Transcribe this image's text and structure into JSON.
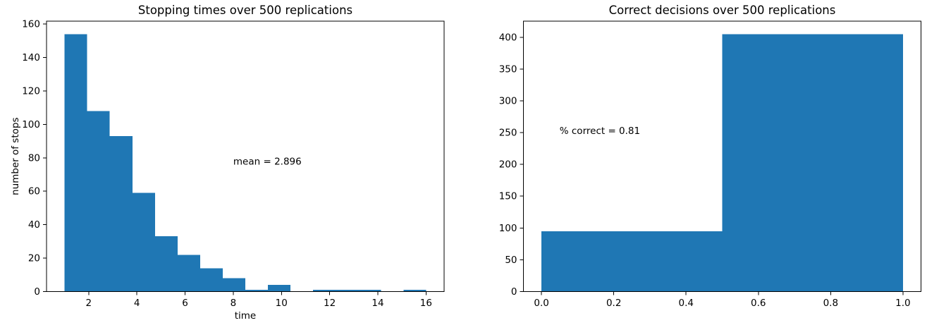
{
  "figure": {
    "background": "#ffffff",
    "bar_color": "#1f77b4",
    "axis_color": "#000000",
    "text_color": "#000000"
  },
  "chart_data": [
    {
      "type": "bar",
      "subtype": "histogram",
      "title": "Stopping times over 500 replications",
      "xlabel": "time",
      "ylabel": "number of stops",
      "bin_edges": [
        1.0,
        1.9375,
        2.875,
        3.8125,
        4.75,
        5.6875,
        6.625,
        7.5625,
        8.5,
        9.4375,
        10.375,
        11.3125,
        12.25,
        13.1875,
        14.125,
        15.0625,
        16.0
      ],
      "counts": [
        154,
        108,
        93,
        59,
        33,
        22,
        14,
        8,
        1,
        4,
        0,
        1,
        1,
        1,
        0,
        1
      ],
      "xlim": [
        0.25,
        16.75
      ],
      "ylim": [
        0,
        161.7
      ],
      "grid": false,
      "legend": null,
      "xticks": {
        "values": [
          2,
          4,
          6,
          8,
          10,
          12,
          14,
          16
        ],
        "labels": [
          "2",
          "4",
          "6",
          "8",
          "10",
          "12",
          "14",
          "16"
        ]
      },
      "yticks": {
        "values": [
          0,
          20,
          40,
          60,
          80,
          100,
          120,
          140,
          160
        ],
        "labels": [
          "0",
          "20",
          "40",
          "60",
          "80",
          "100",
          "120",
          "140",
          "160"
        ]
      },
      "annotation": {
        "text": "mean = 2.896",
        "x": 8,
        "y": 76
      }
    },
    {
      "type": "bar",
      "subtype": "histogram",
      "title": "Correct decisions over 500 replications",
      "xlabel": "",
      "ylabel": "",
      "bin_edges": [
        0.0,
        0.5,
        1.0
      ],
      "counts": [
        95,
        405
      ],
      "xlim": [
        -0.05,
        1.05
      ],
      "ylim": [
        0,
        425.25
      ],
      "grid": false,
      "legend": null,
      "xticks": {
        "values": [
          0.0,
          0.2,
          0.4,
          0.6,
          0.8,
          1.0
        ],
        "labels": [
          "0.0",
          "0.2",
          "0.4",
          "0.6",
          "0.8",
          "1.0"
        ]
      },
      "yticks": {
        "values": [
          0,
          50,
          100,
          150,
          200,
          250,
          300,
          350,
          400
        ],
        "labels": [
          "0",
          "50",
          "100",
          "150",
          "200",
          "250",
          "300",
          "350",
          "400"
        ]
      },
      "annotation": {
        "text": "% correct = 0.81",
        "x": 0.05,
        "y": 248
      }
    }
  ]
}
